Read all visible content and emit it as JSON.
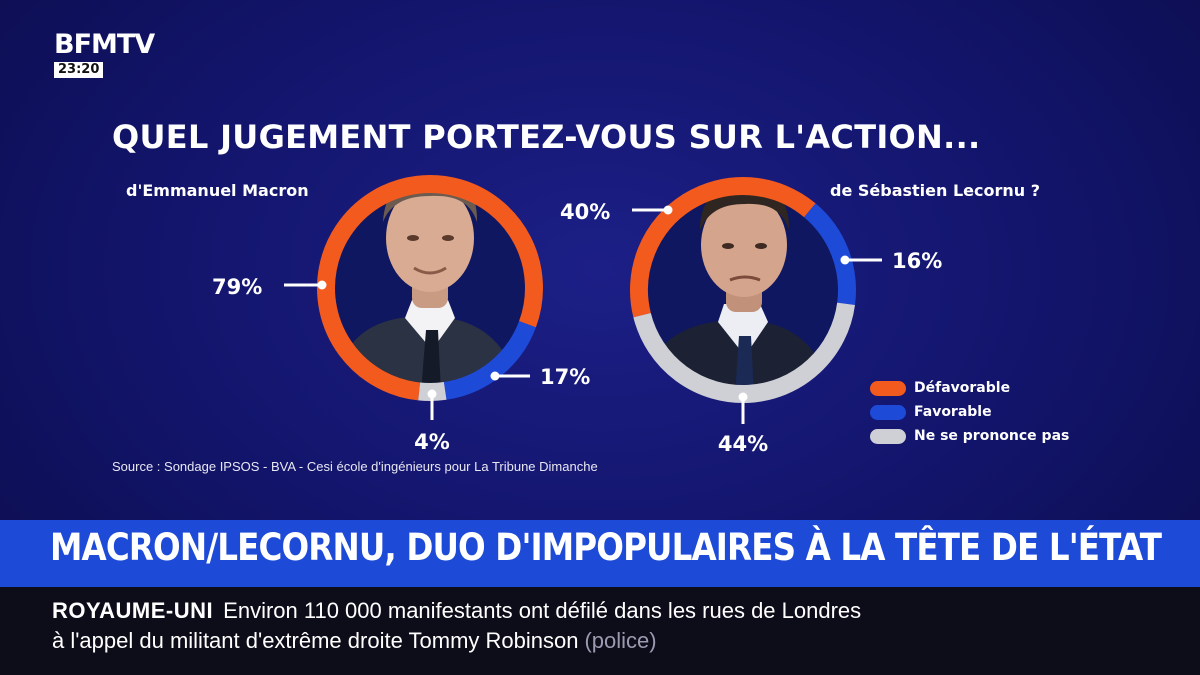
{
  "channel": {
    "logo": "BFMTV",
    "time": "23:20"
  },
  "chart_data": [
    {
      "type": "donut",
      "title": "QUEL JUGEMENT PORTEZ-VOUS SUR L'ACTION...",
      "subtitle": "d'Emmanuel Macron",
      "categories": [
        "Défavorable",
        "Favorable",
        "Ne se prononce pas"
      ],
      "values": [
        79,
        17,
        4
      ],
      "labels": [
        "79%",
        "17%",
        "4%"
      ]
    },
    {
      "type": "donut",
      "subtitle": "de Sébastien Lecornu ?",
      "categories": [
        "Défavorable",
        "Favorable",
        "Ne se prononce pas"
      ],
      "values": [
        40,
        16,
        44
      ],
      "labels": [
        "40%",
        "16%",
        "44%"
      ]
    }
  ],
  "legend": [
    {
      "label": "Défavorable",
      "color": "#f25a1e"
    },
    {
      "label": "Favorable",
      "color": "#1e4ad8"
    },
    {
      "label": "Ne se prononce pas",
      "color": "#cfcfd6"
    }
  ],
  "source": "Source : Sondage IPSOS - BVA - Cesi école d'ingénieurs pour La Tribune Dimanche",
  "headline": "MACRON/LECORNU, DUO D'IMPOPULAIRES À LA TÊTE DE L'ÉTAT",
  "ticker": {
    "tag": "ROYAUME-UNI",
    "line1": "Environ 110 000 manifestants ont défilé dans les rues de Londres",
    "line2": "à l'appel du militant d'extrême droite Tommy Robinson",
    "credit": "(police)"
  }
}
